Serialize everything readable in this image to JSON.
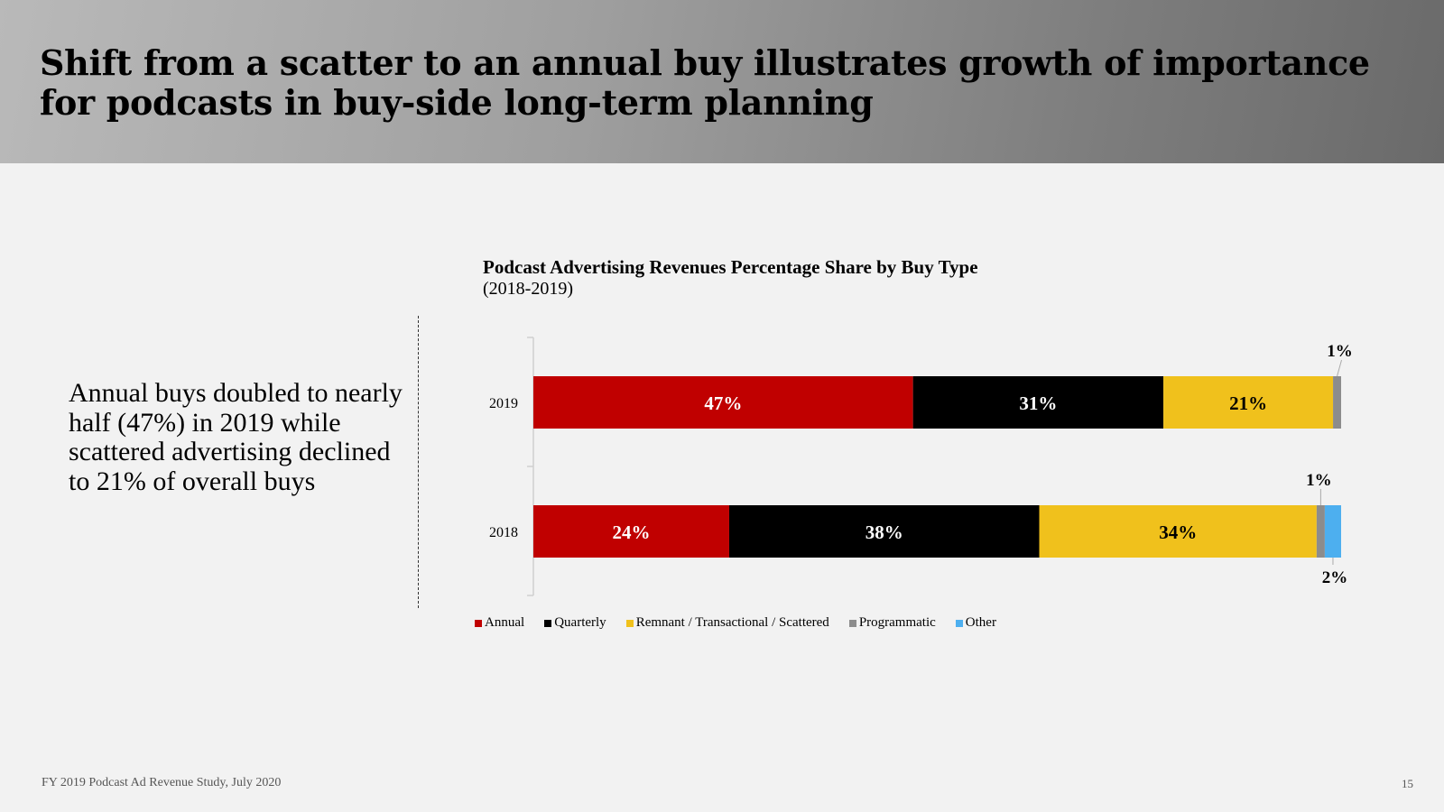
{
  "header": {
    "title": "Shift from a scatter to an annual buy illustrates growth of importance for podcasts in buy-side long-term planning"
  },
  "side_note": "Annual buys doubled to nearly half (47%) in 2019 while scattered advertising declined to 21% of overall buys",
  "chart_data": {
    "type": "bar",
    "orientation": "horizontal",
    "stacked": true,
    "title": "Podcast Advertising Revenues Percentage Share by Buy Type",
    "subtitle": "(2018-2019)",
    "categories": [
      "2019",
      "2018"
    ],
    "series": [
      {
        "name": "Annual",
        "color": "#c00000",
        "values": [
          47,
          24
        ],
        "labels": [
          "47%",
          "24%"
        ]
      },
      {
        "name": "Quarterly",
        "color": "#000000",
        "values": [
          31,
          38
        ],
        "labels": [
          "31%",
          "38%"
        ]
      },
      {
        "name": "Remnant / Transactional / Scattered",
        "color": "#f0c11c",
        "values": [
          21,
          34
        ],
        "labels": [
          "21%",
          "34%"
        ]
      },
      {
        "name": "Programmatic",
        "color": "#8c8c8c",
        "values": [
          1,
          1
        ],
        "labels": [
          "1%",
          "1%"
        ]
      },
      {
        "name": "Other",
        "color": "#4dafef",
        "values": [
          0,
          2
        ],
        "labels": [
          "",
          "2%"
        ]
      }
    ],
    "xlim": [
      0,
      100
    ],
    "legend_position": "bottom"
  },
  "footer": {
    "source": "FY 2019 Podcast Ad Revenue Study, July 2020",
    "page_number": "15"
  }
}
